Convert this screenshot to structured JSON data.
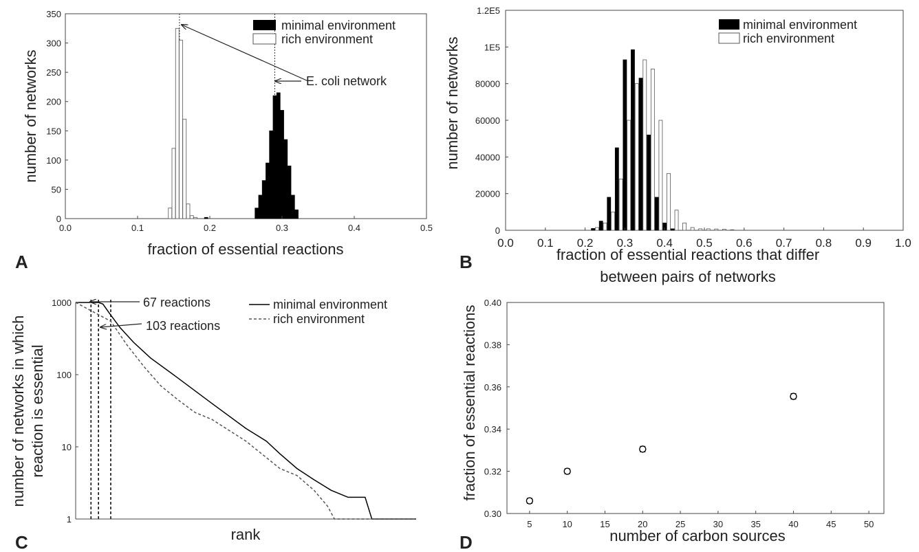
{
  "panels": {
    "A": {
      "label": "A"
    },
    "B": {
      "label": "B"
    },
    "C": {
      "label": "C"
    },
    "D": {
      "label": "D"
    }
  },
  "annotations": {
    "ecoli": "E. coli network",
    "r67": "67 reactions",
    "r103": "103 reactions"
  },
  "chart_data": [
    {
      "panel": "A",
      "type": "bar",
      "xlabel": "fraction of essential reactions",
      "ylabel": "number of networks",
      "xlim": [
        0,
        0.5
      ],
      "ylim": [
        0,
        350
      ],
      "xticks": [
        "0.0",
        "0.1",
        "0.2",
        "0.3",
        "0.4",
        "0.5"
      ],
      "yticks": [
        "0",
        "50",
        "100",
        "150",
        "200",
        "250",
        "300",
        "350"
      ],
      "grid": false,
      "legend_position": "top-right",
      "series": [
        {
          "name": "minimal environment",
          "color": "#000000",
          "x": [
            0.195,
            0.265,
            0.27,
            0.275,
            0.28,
            0.285,
            0.29,
            0.295,
            0.3,
            0.305,
            0.31,
            0.315,
            0.32
          ],
          "values": [
            2,
            18,
            40,
            65,
            95,
            150,
            210,
            215,
            185,
            135,
            90,
            40,
            15
          ]
        },
        {
          "name": "rich environment",
          "color": "#ffffff",
          "x": [
            0.145,
            0.15,
            0.155,
            0.16,
            0.165,
            0.17,
            0.175,
            0.18
          ],
          "values": [
            18,
            120,
            325,
            305,
            170,
            25,
            5,
            2
          ]
        }
      ],
      "reference_lines": [
        {
          "x": 0.158
        },
        {
          "x": 0.29
        }
      ]
    },
    {
      "panel": "B",
      "type": "bar",
      "xlabel": "fraction of essential reactions that differ between pairs of networks",
      "ylabel": "number of networks",
      "xlim": [
        0,
        1.0
      ],
      "ylim": [
        0,
        120000
      ],
      "xticks": [
        "0.0",
        "0.1",
        "0.2",
        "0.3",
        "0.4",
        "0.5",
        "0.6",
        "0.7",
        "0.8",
        "0.9",
        "1.0"
      ],
      "yticks": [
        "0",
        "20000",
        "40000",
        "60000",
        "80000",
        "1E5",
        "1.2E5"
      ],
      "grid": false,
      "legend_position": "top-right",
      "series": [
        {
          "name": "minimal environment",
          "color": "#000000",
          "x": [
            0.22,
            0.24,
            0.26,
            0.28,
            0.3,
            0.32,
            0.34,
            0.36,
            0.38,
            0.4,
            0.42
          ],
          "values": [
            1000,
            5000,
            18000,
            45000,
            93000,
            98500,
            83000,
            52000,
            18000,
            4000,
            800
          ]
        },
        {
          "name": "rich environment",
          "color": "#ffffff",
          "x": [
            0.23,
            0.25,
            0.27,
            0.29,
            0.31,
            0.33,
            0.35,
            0.37,
            0.39,
            0.41,
            0.43,
            0.45,
            0.47,
            0.49,
            0.51,
            0.53,
            0.55,
            0.57
          ],
          "values": [
            1500,
            4000,
            10000,
            28000,
            60000,
            80000,
            93000,
            88000,
            60000,
            31000,
            11000,
            4000,
            1500,
            800,
            800,
            700,
            600,
            300
          ]
        }
      ]
    },
    {
      "panel": "C",
      "type": "line",
      "xlabel": "rank",
      "ylabel": "number of networks in which reaction is essential",
      "yscale": "log",
      "xlim": [
        0,
        1000
      ],
      "ylim": [
        1,
        1000
      ],
      "yticks": [
        "1",
        "10",
        "100",
        "1000"
      ],
      "grid": false,
      "legend_position": "top-right",
      "series": [
        {
          "name": "minimal environment",
          "style": "solid",
          "x": [
            0,
            67,
            80,
            100,
            130,
            170,
            220,
            300,
            400,
            500,
            560,
            600,
            650,
            700,
            750,
            800,
            850,
            870,
            1000
          ],
          "values": [
            1000,
            1000,
            950,
            700,
            450,
            280,
            170,
            90,
            40,
            18,
            12,
            8,
            5,
            3.5,
            2.5,
            2,
            2,
            1,
            1
          ]
        },
        {
          "name": "rich environment",
          "style": "dashed",
          "x": [
            0,
            103,
            120,
            150,
            200,
            250,
            300,
            350,
            400,
            500,
            600,
            650,
            700,
            740,
            760,
            1000
          ],
          "values": [
            1000,
            550,
            420,
            260,
            130,
            70,
            45,
            30,
            24,
            12,
            5,
            4,
            2.5,
            1.5,
            1,
            1
          ]
        }
      ],
      "reference_lines": [
        {
          "x": 45
        },
        {
          "x": 67
        },
        {
          "x": 103
        }
      ]
    },
    {
      "panel": "D",
      "type": "scatter",
      "xlabel": "number of carbon sources",
      "ylabel": "fraction of essential reactions",
      "xlim": [
        2,
        52
      ],
      "ylim": [
        0.3,
        0.4
      ],
      "xticks": [
        "5",
        "10",
        "15",
        "20",
        "25",
        "30",
        "35",
        "40",
        "45",
        "50"
      ],
      "yticks": [
        "0.30",
        "0.32",
        "0.34",
        "0.36",
        "0.38",
        "0.40"
      ],
      "grid": false,
      "series": [
        {
          "x": [
            5,
            10,
            20,
            40
          ],
          "values": [
            0.306,
            0.32,
            0.3305,
            0.3555
          ],
          "error": [
            0.0012,
            0.0012,
            0.0013,
            0.0013
          ]
        }
      ]
    }
  ]
}
